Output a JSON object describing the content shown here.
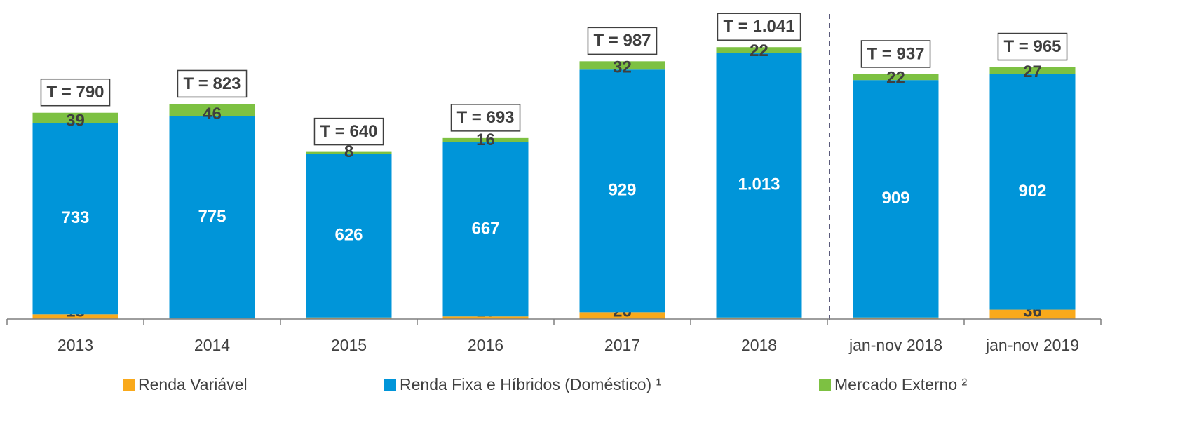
{
  "chart_data": {
    "type": "stacked_bar",
    "categories": [
      "2013",
      "2014",
      "2015",
      "2016",
      "2017",
      "2018",
      "jan-nov 2018",
      "jan-nov 2019"
    ],
    "series": [
      {
        "name": "Renda Variável",
        "color": "#f9a91b",
        "values": [
          18,
          2,
          6,
          10,
          26,
          6,
          6,
          36
        ]
      },
      {
        "name": "Renda Fixa e Híbridos (Doméstico) ¹",
        "color": "#0095d9",
        "values": [
          733,
          775,
          626,
          667,
          929,
          1013,
          909,
          902
        ],
        "value_labels": [
          "733",
          "775",
          "626",
          "667",
          "929",
          "1.013",
          "909",
          "902"
        ]
      },
      {
        "name": "Mercado Externo ²",
        "color": "#7dc142",
        "values": [
          39,
          46,
          8,
          16,
          32,
          22,
          22,
          27
        ]
      }
    ],
    "total_labels": [
      "T = 790",
      "T = 823",
      "T = 640",
      "T = 693",
      "T = 987",
      "T = 1.041",
      "T = 937",
      "T = 965"
    ],
    "ylim": [
      0,
      1200
    ]
  }
}
